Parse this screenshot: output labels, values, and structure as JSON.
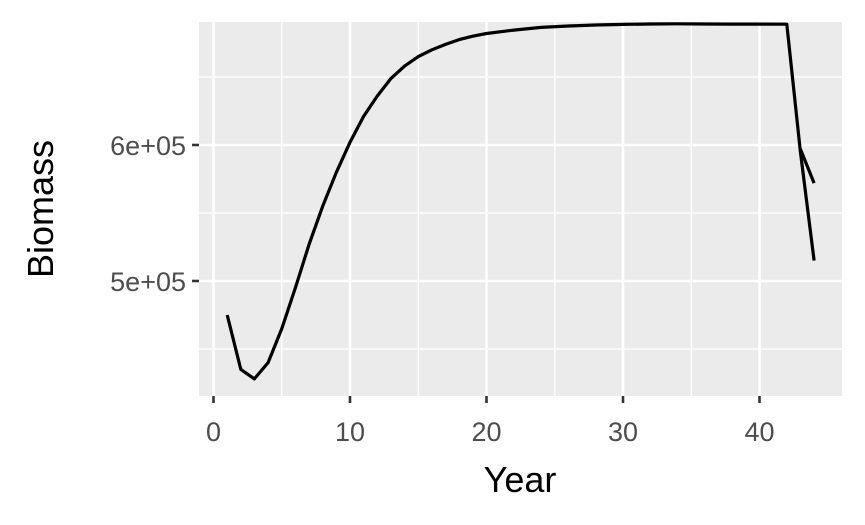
{
  "chart_data": {
    "type": "line",
    "xlabel": "Year",
    "ylabel": "Biomass",
    "xlim": [
      0,
      45
    ],
    "ylim": [
      410000,
      690000
    ],
    "x_ticks": [
      0,
      10,
      20,
      30,
      40
    ],
    "x_tick_labels": [
      "0",
      "10",
      "20",
      "30",
      "40"
    ],
    "y_ticks": [
      500000,
      600000
    ],
    "y_tick_labels": [
      "5e+05",
      "6e+05"
    ],
    "grid": true,
    "panel_background": "#ebebeb",
    "grid_color": "#ffffff",
    "line_color": "#000000",
    "series": [
      {
        "x": [
          1,
          2,
          3,
          4,
          5,
          6,
          7,
          8,
          9,
          10,
          11,
          12,
          13,
          14,
          15,
          16,
          17,
          18,
          19,
          20,
          22,
          24,
          26,
          28,
          30,
          32,
          34,
          36,
          38,
          40,
          42,
          43,
          44
        ],
        "values": [
          475000,
          435000,
          428000,
          440000,
          465000,
          495000,
          527000,
          555000,
          580000,
          602000,
          621000,
          636000,
          649000,
          658000,
          665000,
          670000,
          674000,
          677500,
          680000,
          682000,
          684500,
          686500,
          687500,
          688200,
          688700,
          689000,
          689100,
          689000,
          688900,
          688900,
          688800,
          595000,
          515000
        ]
      },
      {
        "x": [
          43,
          44
        ],
        "values": [
          597000,
          572000
        ]
      }
    ]
  }
}
